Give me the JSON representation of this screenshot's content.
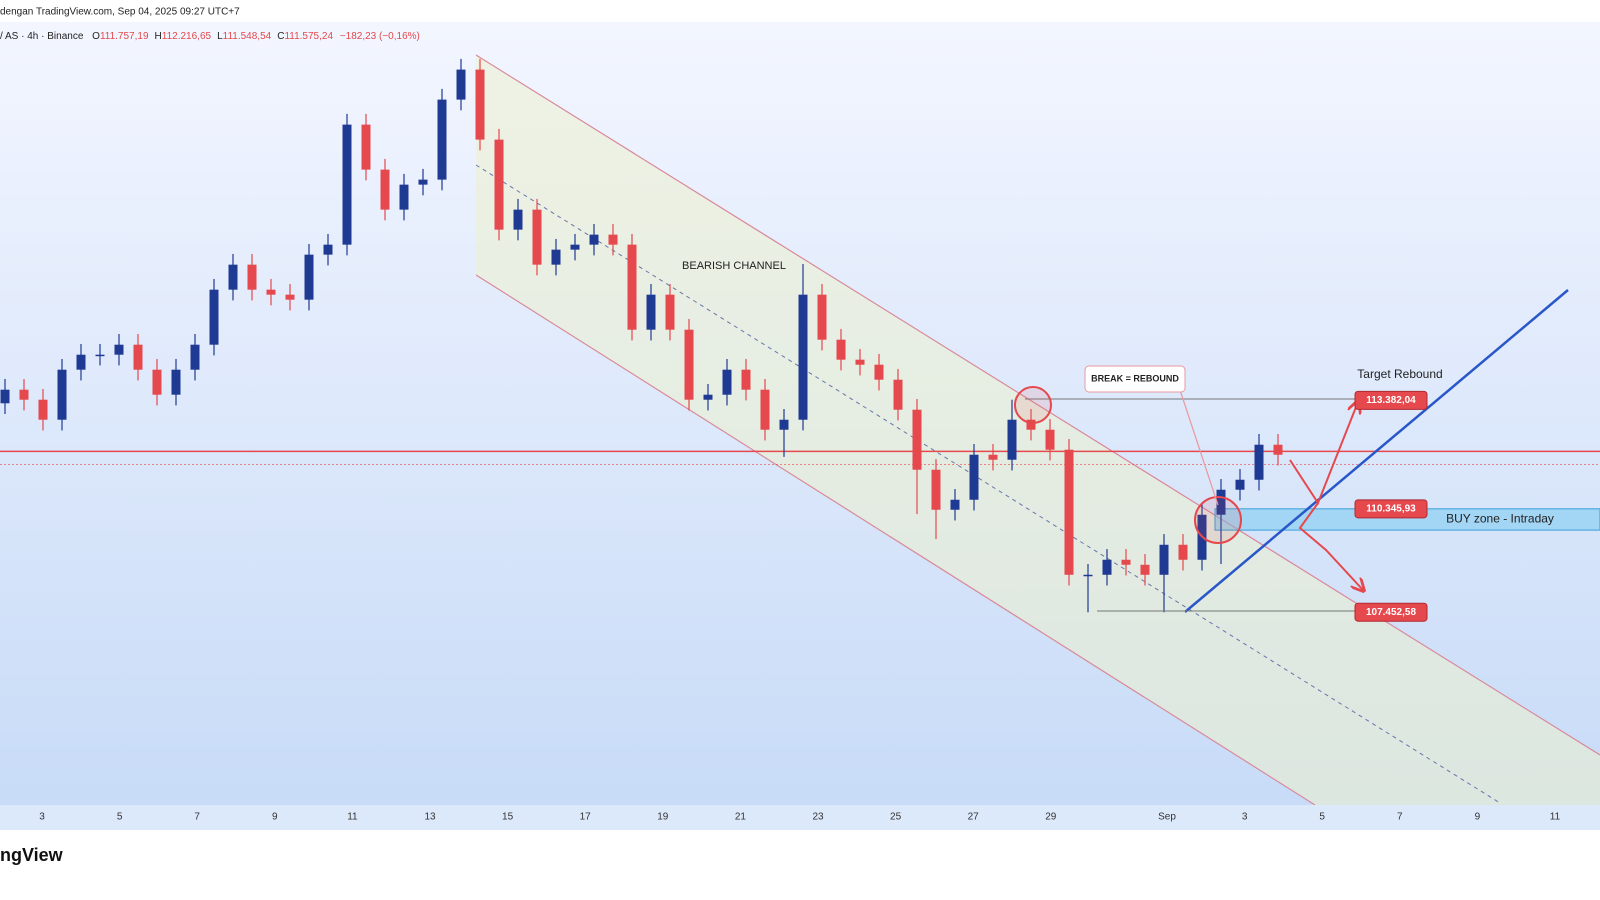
{
  "chart_data": {
    "type": "candlestick",
    "header": "dengan TradingView.com, Sep 04, 2025 09:27 UTC+7",
    "symbol": "/ AS · 4h · Binance",
    "ohlc": [
      {
        "key": "O",
        "value": "111.757,19"
      },
      {
        "key": "H",
        "value": "112.216,65"
      },
      {
        "key": "L",
        "value": "111.548,54"
      },
      {
        "key": "C",
        "value": "111.575,24"
      }
    ],
    "change": "−182,23 (−0,16%)",
    "brand": "ngView",
    "xlabels": [
      "3",
      "5",
      "7",
      "9",
      "11",
      "13",
      "15",
      "17",
      "19",
      "21",
      "23",
      "25",
      "27",
      "29",
      "Sep",
      "3",
      "5",
      "7",
      "9",
      "11"
    ],
    "ylim": [
      102000,
      124000
    ],
    "up_color": "#1f3a93",
    "down_color": "#e5484d",
    "open": [
      113300,
      113680,
      113400,
      112840,
      114240,
      114660,
      114660,
      114940,
      114240,
      113540,
      114240,
      114940,
      116480,
      117180,
      116480,
      116340,
      116200,
      117460,
      117740,
      121100,
      119840,
      118720,
      119420,
      119560,
      121800,
      122640,
      120680,
      118160,
      118720,
      117180,
      117600,
      117740,
      118020,
      117740,
      115360,
      116340,
      115360,
      113400,
      113540,
      114240,
      113680,
      112560,
      112840,
      116340,
      115080,
      114520,
      114380,
      113960,
      113120,
      111440,
      110320,
      110600,
      111860,
      111720,
      112840,
      112560,
      112000,
      108500,
      108500,
      108920,
      108780,
      108500,
      109340,
      108920,
      110180,
      110880,
      111160,
      112140
    ],
    "high": [
      113980,
      113980,
      113700,
      114540,
      114960,
      114960,
      115240,
      115240,
      114540,
      114540,
      115240,
      116780,
      117480,
      117480,
      116780,
      116640,
      117760,
      118040,
      121400,
      121400,
      120140,
      119720,
      119860,
      122100,
      122940,
      122940,
      120980,
      119020,
      119020,
      117900,
      118040,
      118320,
      118320,
      118040,
      116640,
      116640,
      115660,
      113840,
      114540,
      114540,
      113980,
      113140,
      117200,
      116640,
      115380,
      114820,
      114680,
      114260,
      113420,
      111740,
      110900,
      112160,
      112160,
      113400,
      113140,
      112860,
      112300,
      108800,
      109220,
      109220,
      109080,
      109640,
      109640,
      110480,
      111180,
      111460,
      112440,
      112440
    ],
    "low": [
      113000,
      113100,
      112540,
      112540,
      113940,
      114360,
      114360,
      113940,
      113240,
      113240,
      113940,
      114640,
      116180,
      116180,
      116040,
      115900,
      115900,
      117160,
      117440,
      119540,
      118420,
      118420,
      119120,
      119260,
      121500,
      120380,
      117860,
      117860,
      116880,
      116880,
      117300,
      117440,
      117440,
      115060,
      115060,
      115060,
      113100,
      113100,
      113240,
      113380,
      112260,
      111800,
      112540,
      114780,
      114220,
      114080,
      113660,
      112820,
      110200,
      109500,
      110020,
      110300,
      111420,
      111420,
      112260,
      111700,
      108200,
      107450,
      108200,
      108480,
      108200,
      107450,
      108620,
      108620,
      108800,
      110580,
      110860,
      111560
    ],
    "close": [
      113680,
      113400,
      112840,
      114240,
      114660,
      114660,
      114940,
      114240,
      113540,
      114240,
      114940,
      116480,
      117180,
      116480,
      116340,
      116200,
      117460,
      117740,
      121100,
      119840,
      118720,
      119420,
      119560,
      121800,
      122640,
      120680,
      118160,
      118720,
      117180,
      117600,
      117740,
      118020,
      117740,
      115360,
      116340,
      115360,
      113400,
      113540,
      114240,
      113680,
      112560,
      112840,
      116340,
      115080,
      114520,
      114380,
      113960,
      113120,
      111440,
      110320,
      110600,
      111860,
      111720,
      112840,
      112560,
      112000,
      108500,
      108500,
      108920,
      108780,
      108500,
      109340,
      108920,
      110180,
      110880,
      111160,
      112140,
      111860
    ],
    "horizontal_line": 111955,
    "levels": [
      {
        "label": "113.382,04",
        "value": 113382.04
      },
      {
        "label": "110.345,93",
        "value": 110345.93
      },
      {
        "label": "107.452,58",
        "value": 107452.58
      }
    ],
    "buy_zone": {
      "label": "BUY zone - Intraday",
      "top": 110345.93,
      "bottom": 109750
    },
    "annotations": {
      "channel": "BEARISH CHANNEL",
      "break": "BREAK = REBOUND",
      "target": "Target Rebound"
    }
  }
}
